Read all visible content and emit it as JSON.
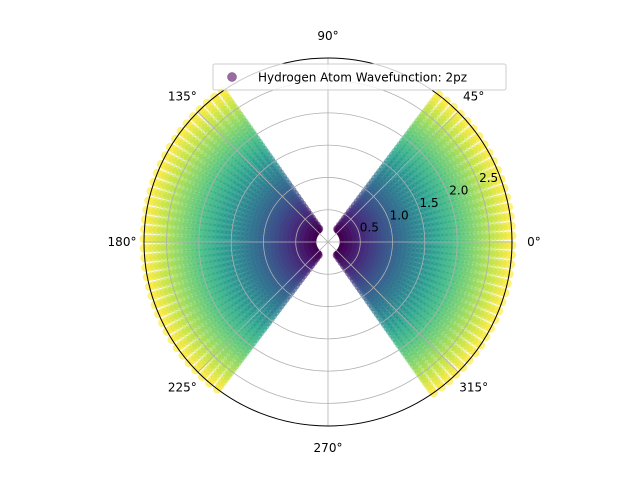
{
  "chart_data": {
    "type": "scatter",
    "projection": "polar",
    "title": "",
    "legend": {
      "label": "Hydrogen Atom Wavefunction: 2pz",
      "placement": "top-right",
      "marker_color": "#9b6aa3"
    },
    "series": [
      {
        "name": "Hydrogen Atom Wavefunction: 2pz",
        "colormap": "viridis",
        "alpha": 0.6,
        "theta_deg_ranges": [
          [
            -55,
            55
          ],
          [
            125,
            235
          ]
        ],
        "r_range": [
          0.25,
          2.85
        ]
      }
    ],
    "angular_ticks": [
      "0°",
      "45°",
      "90°",
      "135°",
      "180°",
      "225°",
      "270°",
      "315°"
    ],
    "angular_tick_values_deg": [
      0,
      45,
      90,
      135,
      180,
      225,
      270,
      315
    ],
    "radial_ticks": [
      "0.5",
      "1.0",
      "1.5",
      "2.0",
      "2.5"
    ],
    "radial_tick_values": [
      0.5,
      1.0,
      1.5,
      2.0,
      2.5
    ],
    "rlim": [
      0,
      2.85
    ],
    "grid": true
  }
}
